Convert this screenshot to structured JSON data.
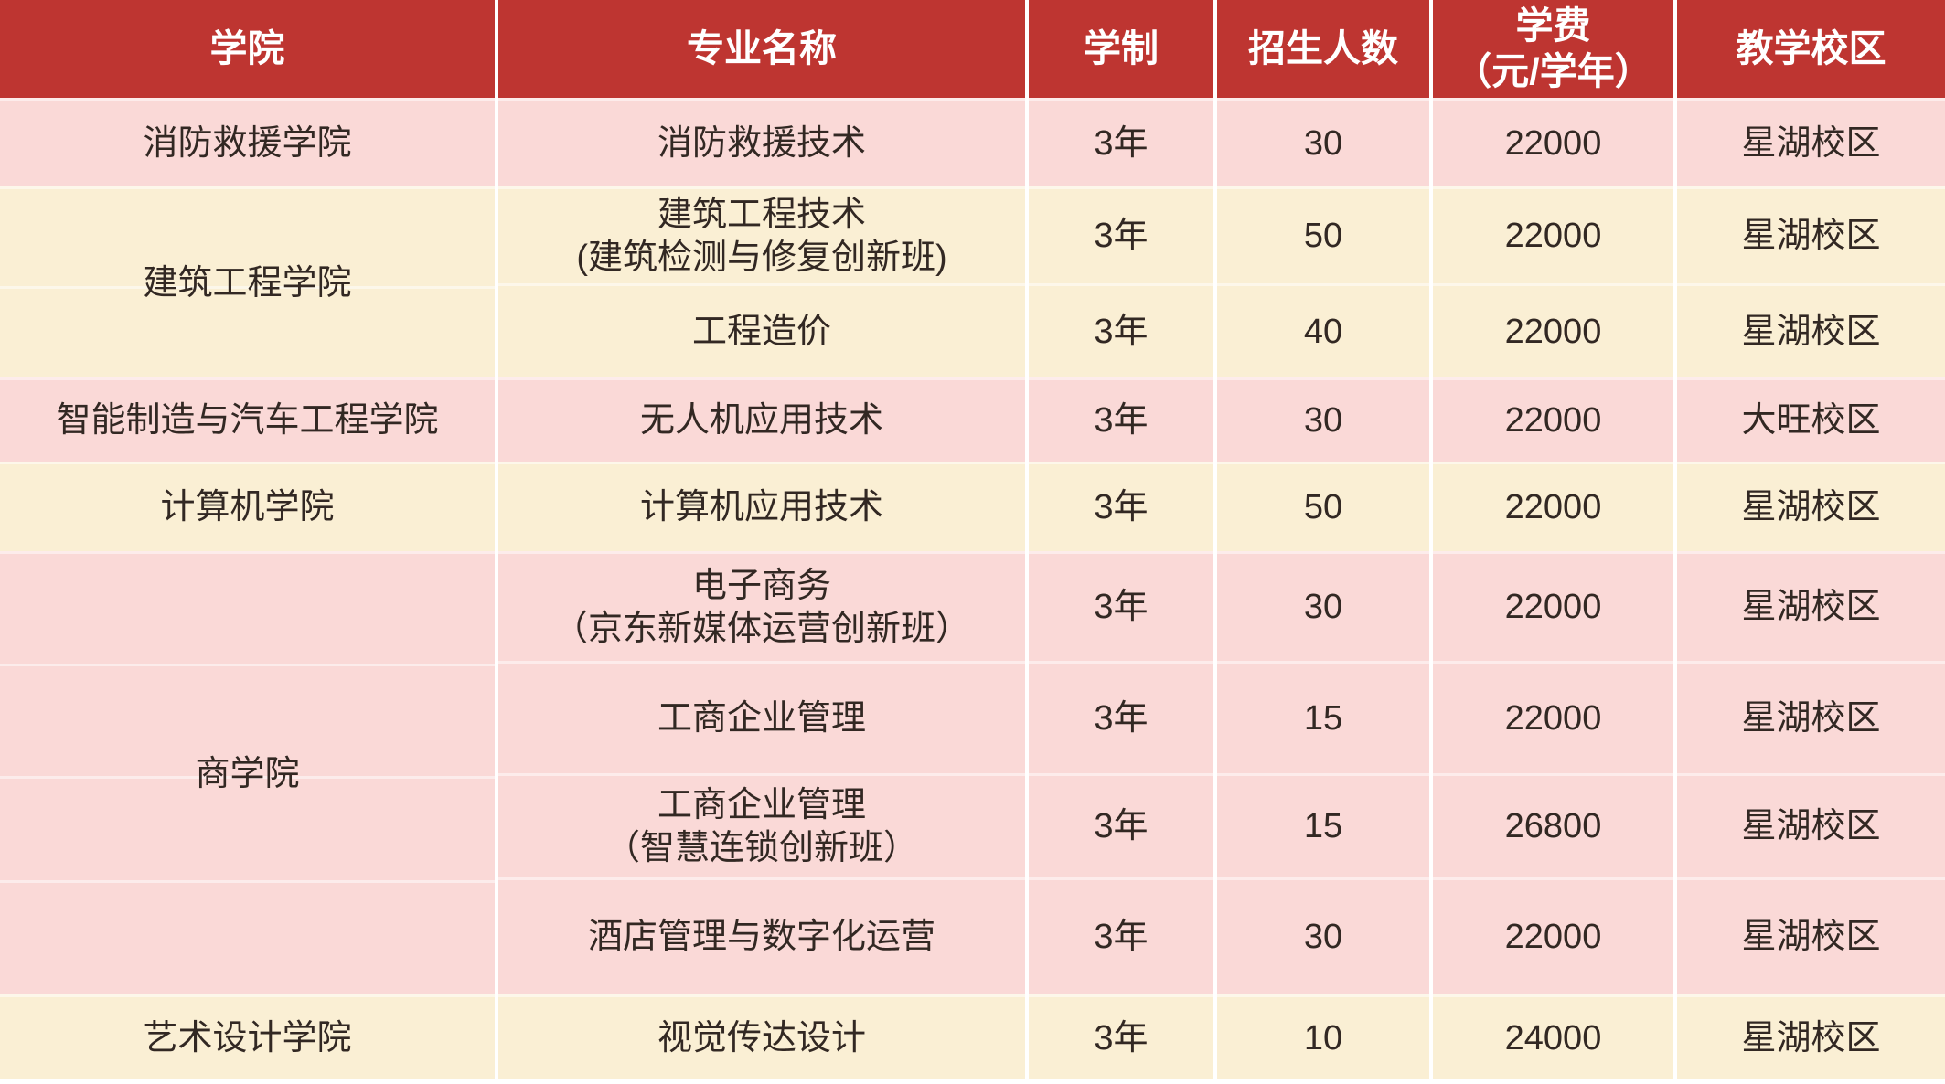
{
  "colors": {
    "header_bg": "#be3531",
    "row_pink": "#fad9d7",
    "row_cream": "#faefd4",
    "header_text": "#ffffff",
    "body_text": "#322823",
    "separator": "#ffffff"
  },
  "header": {
    "college": "学院",
    "major": "专业名称",
    "duration": "学制",
    "enrollment": "招生人数",
    "tuition": "学费\n（元/学年）",
    "campus": "教学校区"
  },
  "rows": [
    {
      "college": "消防救援学院",
      "college_rowspan": 1,
      "major": "消防救援技术",
      "duration": "3年",
      "enrollment": "30",
      "tuition": "22000",
      "campus": "星湖校区",
      "shade": "pink"
    },
    {
      "college": "建筑工程学院",
      "college_rowspan": 2,
      "major": "建筑工程技术\n(建筑检测与修复创新班)",
      "duration": "3年",
      "enrollment": "50",
      "tuition": "22000",
      "campus": "星湖校区",
      "shade": "cream"
    },
    {
      "major": "工程造价",
      "duration": "3年",
      "enrollment": "40",
      "tuition": "22000",
      "campus": "星湖校区",
      "shade": "cream"
    },
    {
      "college": "智能制造与汽车工程学院",
      "college_rowspan": 1,
      "major": "无人机应用技术",
      "duration": "3年",
      "enrollment": "30",
      "tuition": "22000",
      "campus": "大旺校区",
      "shade": "pink"
    },
    {
      "college": "计算机学院",
      "college_rowspan": 1,
      "major": "计算机应用技术",
      "duration": "3年",
      "enrollment": "50",
      "tuition": "22000",
      "campus": "星湖校区",
      "shade": "cream"
    },
    {
      "college": "商学院",
      "college_rowspan": 4,
      "major": "电子商务\n（京东新媒体运营创新班）",
      "duration": "3年",
      "enrollment": "30",
      "tuition": "22000",
      "campus": "星湖校区",
      "shade": "pink"
    },
    {
      "major": "工商企业管理",
      "duration": "3年",
      "enrollment": "15",
      "tuition": "22000",
      "campus": "星湖校区",
      "shade": "pink"
    },
    {
      "major": "工商企业管理\n（智慧连锁创新班）",
      "duration": "3年",
      "enrollment": "15",
      "tuition": "26800",
      "campus": "星湖校区",
      "shade": "pink"
    },
    {
      "major": "酒店管理与数字化运营",
      "duration": "3年",
      "enrollment": "30",
      "tuition": "22000",
      "campus": "星湖校区",
      "shade": "pink"
    },
    {
      "college": "艺术设计学院",
      "college_rowspan": 1,
      "major": "视觉传达设计",
      "duration": "3年",
      "enrollment": "10",
      "tuition": "24000",
      "campus": "星湖校区",
      "shade": "cream"
    }
  ]
}
